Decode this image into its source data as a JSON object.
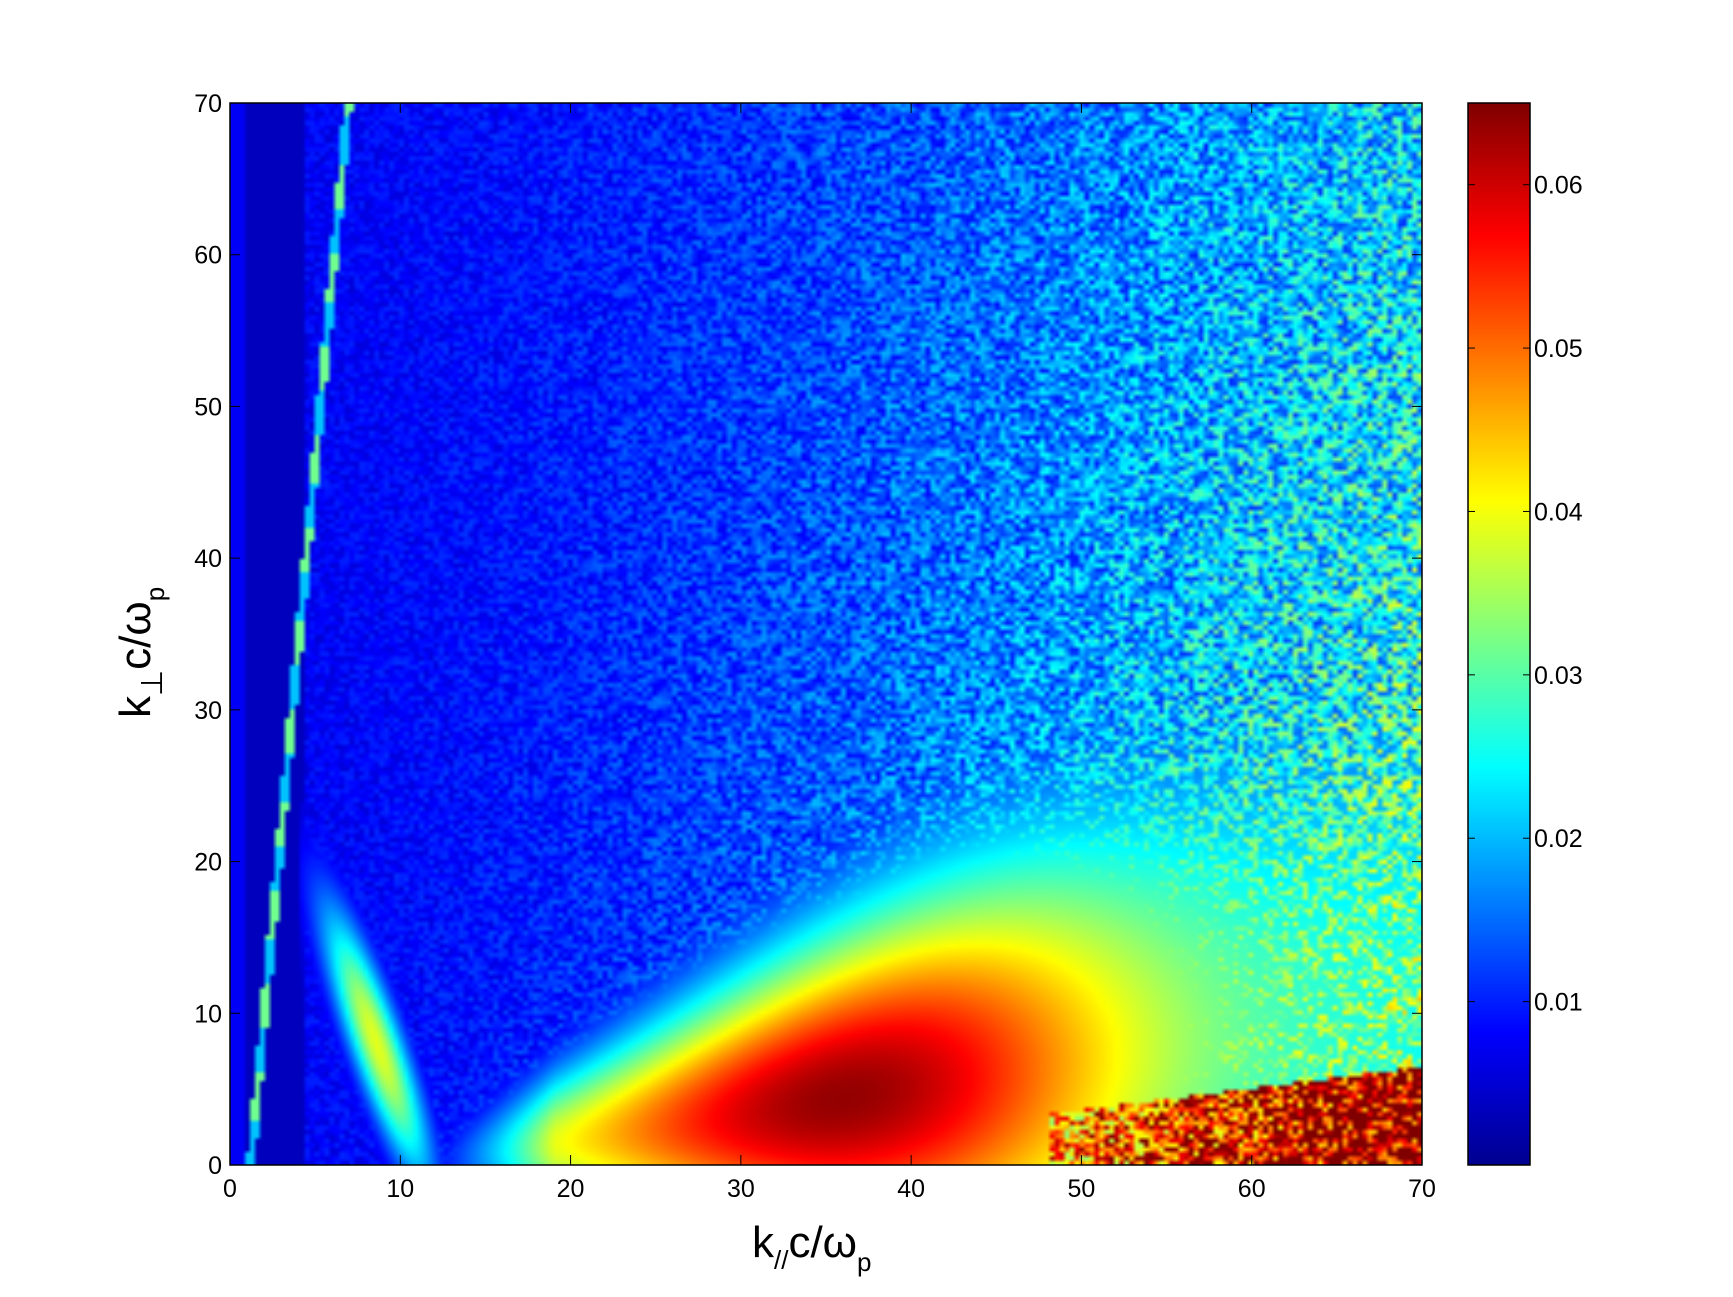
{
  "chart_data": {
    "type": "heatmap",
    "title": "",
    "xlabel": {
      "base": "k",
      "subscript": "//",
      "rest": "c/ω",
      "rest_subscript": "p"
    },
    "ylabel": {
      "base": "k",
      "subscript": "⊥",
      "rest": "c/ω",
      "rest_subscript": "p"
    },
    "xlim": [
      0,
      70
    ],
    "ylim": [
      0,
      70
    ],
    "x_ticks": [
      "0",
      "10",
      "20",
      "30",
      "40",
      "50",
      "60",
      "70"
    ],
    "y_ticks": [
      "0",
      "10",
      "20",
      "30",
      "40",
      "50",
      "60",
      "70"
    ],
    "colorbar": {
      "colormap": "jet",
      "range": [
        0,
        0.065
      ],
      "ticks": [
        "0.01",
        "0.02",
        "0.03",
        "0.04",
        "0.05",
        "0.06"
      ],
      "tick_values": [
        0.01,
        0.02,
        0.03,
        0.04,
        0.05,
        0.06
      ]
    },
    "features": {
      "peak_value": 0.065,
      "peak_location": [
        36,
        2
      ],
      "main_lobe": "high-intensity band from k_par≈20 to 70 rising to k_perp≈22 at k_par=70",
      "low_k_branch": "bright branch near k_par≈4–12, k_perp≈0–22",
      "noise_region": "noisy values increasing with k_par in upper-right region"
    }
  }
}
